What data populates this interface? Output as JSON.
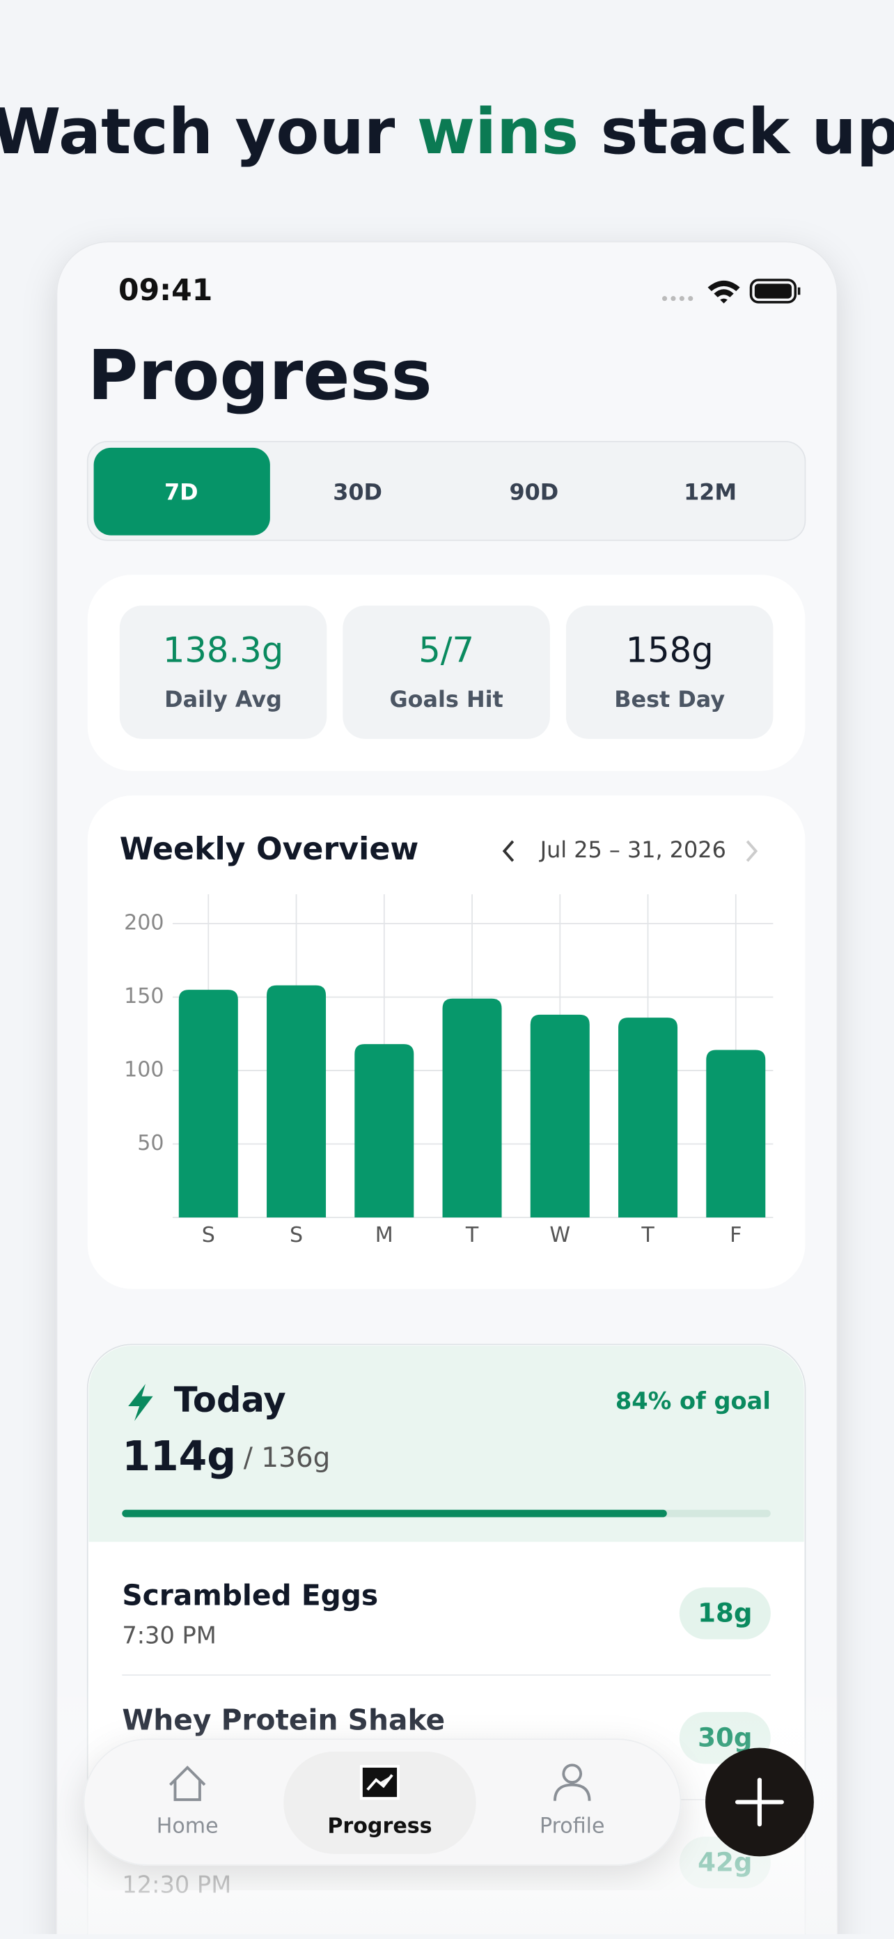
{
  "headline": {
    "before": "Watch your ",
    "highlight": "wins",
    "after": " stack up"
  },
  "status_bar": {
    "time": "09:41"
  },
  "screen_title": "Progress",
  "range_tabs": [
    "7D",
    "30D",
    "90D",
    "12M"
  ],
  "selected_tab": 0,
  "stats": [
    {
      "value": "138.3g",
      "label": "Daily Avg",
      "color": "#0a8a5f"
    },
    {
      "value": "5/7",
      "label": "Goals Hit",
      "color": "#0a8a5f"
    },
    {
      "value": "158g",
      "label": "Best Day",
      "color": "#111827"
    }
  ],
  "chart_data": {
    "type": "bar",
    "title": "Weekly Overview",
    "subtitle": "Jul 25 – 31, 2026",
    "categories": [
      "S",
      "S",
      "M",
      "T",
      "W",
      "T",
      "F"
    ],
    "values": [
      155,
      158,
      118,
      149,
      138,
      136,
      114
    ],
    "color": "#07986b",
    "ylim": [
      0,
      220
    ],
    "yticks": [
      50,
      100,
      150,
      200
    ],
    "grid": true
  },
  "today": {
    "title": "Today",
    "progress": 84,
    "progress_label": "84% of goal",
    "amount": "114g",
    "goal": "/ 136g"
  },
  "meals": [
    {
      "name": "Scrambled Eggs",
      "time": "7:30 PM",
      "protein": "18g"
    },
    {
      "name": "Whey Protein Shake",
      "protein": "30g"
    },
    {
      "time": "12:30 PM",
      "protein": "42g"
    }
  ],
  "nav": [
    "Home",
    "Progress",
    "Profile"
  ],
  "selected_nav": 1
}
